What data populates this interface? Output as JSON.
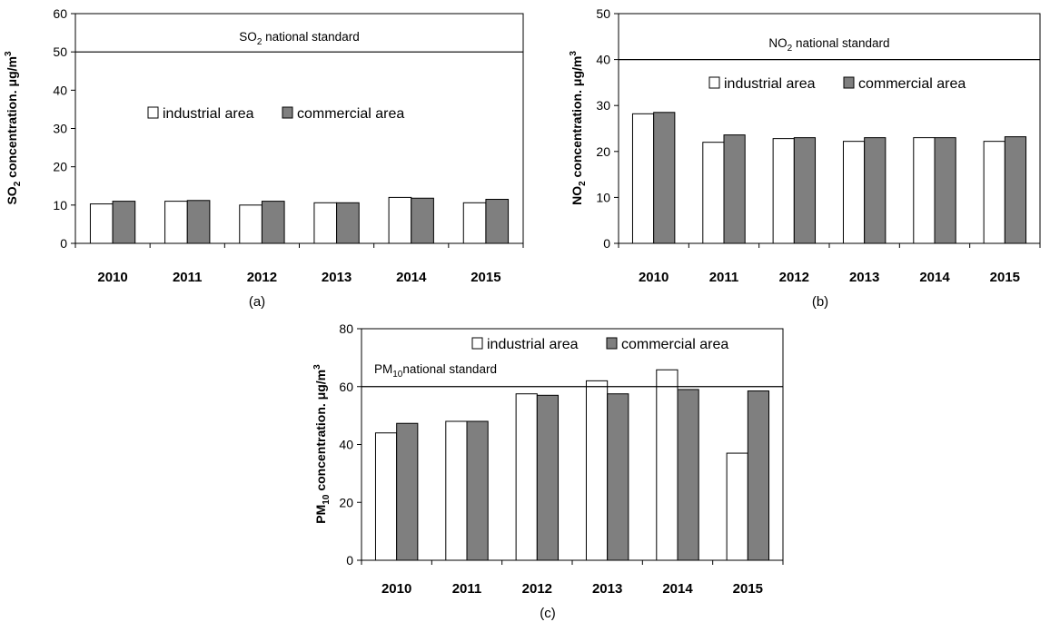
{
  "colors": {
    "industrial": "#ffffff",
    "commercial": "#7f7f7f",
    "stroke": "#000000"
  },
  "legend": {
    "industrial": "industrial area",
    "commercial": "commercial area"
  },
  "chart_data": [
    {
      "type": "bar",
      "panel_label": "(a)",
      "ylabel_parts": {
        "a": "SO",
        "sub": "2",
        "b": " concentration. μg/m",
        "sup": "3"
      },
      "categories": [
        "2010",
        "2011",
        "2012",
        "2013",
        "2014",
        "2015"
      ],
      "series": [
        {
          "name": "industrial area",
          "values": [
            10.3,
            11.0,
            10.0,
            10.6,
            12.0,
            10.6
          ]
        },
        {
          "name": "commercial area",
          "values": [
            11.0,
            11.2,
            11.0,
            10.6,
            11.8,
            11.5
          ]
        }
      ],
      "ylim": [
        0,
        60
      ],
      "yticks": [
        "0",
        "10",
        "20",
        "30",
        "40",
        "50",
        "60"
      ],
      "reference_line": {
        "value": 50,
        "label_parts": {
          "a": "SO",
          "sub": "2",
          "b": " national standard"
        }
      },
      "legend_position": "middle"
    },
    {
      "type": "bar",
      "panel_label": "(b)",
      "ylabel_parts": {
        "a": "NO",
        "sub": "2",
        "b": " concentration. μg/m",
        "sup": "3"
      },
      "categories": [
        "2010",
        "2011",
        "2012",
        "2013",
        "2014",
        "2015"
      ],
      "series": [
        {
          "name": "industrial area",
          "values": [
            28.2,
            22.0,
            22.8,
            22.2,
            23.0,
            22.2
          ]
        },
        {
          "name": "commercial area",
          "values": [
            28.5,
            23.6,
            23.0,
            23.0,
            23.0,
            23.2
          ]
        }
      ],
      "ylim": [
        0,
        50
      ],
      "yticks": [
        "0",
        "10",
        "20",
        "30",
        "40",
        "50"
      ],
      "reference_line": {
        "value": 40,
        "label_parts": {
          "a": "NO",
          "sub": "2",
          "b": " national standard"
        }
      },
      "legend_position": "upper-middle"
    },
    {
      "type": "bar",
      "panel_label": "(c)",
      "ylabel_parts": {
        "a": "PM",
        "sub": "10",
        "b": " concentration. μg/m",
        "sup": "3"
      },
      "categories": [
        "2010",
        "2011",
        "2012",
        "2013",
        "2014",
        "2015"
      ],
      "series": [
        {
          "name": "industrial area",
          "values": [
            44.0,
            48.0,
            57.5,
            62.0,
            65.8,
            37.0
          ]
        },
        {
          "name": "commercial area",
          "values": [
            47.3,
            48.0,
            57.0,
            57.5,
            59.0,
            58.5
          ]
        }
      ],
      "ylim": [
        0,
        80
      ],
      "yticks": [
        "0",
        "20",
        "40",
        "60",
        "80"
      ],
      "reference_line": {
        "value": 60,
        "label_parts": {
          "a": "PM",
          "sub": "10",
          "b": "national standard"
        }
      },
      "legend_position": "top-right"
    }
  ]
}
